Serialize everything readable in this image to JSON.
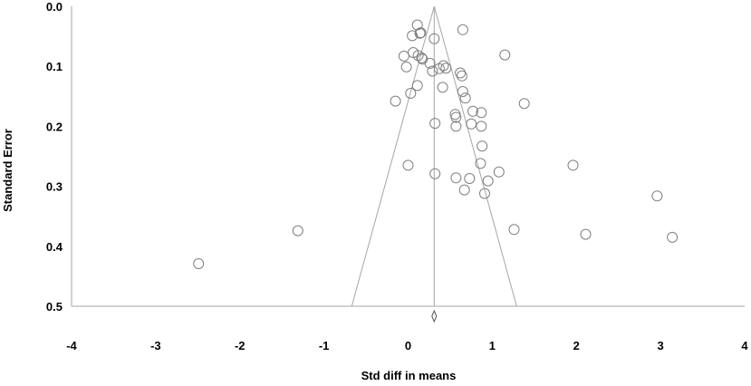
{
  "chart_data": {
    "type": "scatter",
    "title": "",
    "xlabel": "Std diff in means",
    "ylabel": "Standard Error",
    "xlim": [
      -4,
      4
    ],
    "ylim": [
      0,
      0.5
    ],
    "y_reversed": true,
    "grid": false,
    "x_ticks": [
      "-4",
      "-3",
      "-2",
      "-1",
      "0",
      "1",
      "2",
      "3",
      "4"
    ],
    "y_ticks": [
      "0.0",
      "0.1",
      "0.2",
      "0.3",
      "0.4",
      "0.5"
    ],
    "summary_effect": 0.31,
    "funnel_lower_at_max_se": -0.67,
    "funnel_upper_at_max_se": 1.29,
    "marker": "open-circle",
    "marker_color": "#808080",
    "line_color": "#a6a6a6",
    "points": [
      {
        "x": 0.11,
        "y": 0.031
      },
      {
        "x": 0.15,
        "y": 0.044
      },
      {
        "x": 0.14,
        "y": 0.045
      },
      {
        "x": 0.05,
        "y": 0.049
      },
      {
        "x": 0.31,
        "y": 0.054
      },
      {
        "x": 0.65,
        "y": 0.039
      },
      {
        "x": 1.15,
        "y": 0.081
      },
      {
        "x": -0.05,
        "y": 0.083
      },
      {
        "x": 0.06,
        "y": 0.077
      },
      {
        "x": 0.12,
        "y": 0.082
      },
      {
        "x": 0.16,
        "y": 0.086
      },
      {
        "x": 0.17,
        "y": 0.088
      },
      {
        "x": -0.02,
        "y": 0.101
      },
      {
        "x": 0.26,
        "y": 0.095
      },
      {
        "x": 0.29,
        "y": 0.108
      },
      {
        "x": 0.37,
        "y": 0.104
      },
      {
        "x": 0.42,
        "y": 0.099
      },
      {
        "x": 0.45,
        "y": 0.103
      },
      {
        "x": 0.62,
        "y": 0.111
      },
      {
        "x": 0.64,
        "y": 0.116
      },
      {
        "x": 0.11,
        "y": 0.132
      },
      {
        "x": 0.41,
        "y": 0.135
      },
      {
        "x": 0.65,
        "y": 0.142
      },
      {
        "x": 0.68,
        "y": 0.153
      },
      {
        "x": 0.03,
        "y": 0.145
      },
      {
        "x": -0.15,
        "y": 0.158
      },
      {
        "x": 1.38,
        "y": 0.162
      },
      {
        "x": 0.77,
        "y": 0.175
      },
      {
        "x": 0.87,
        "y": 0.177
      },
      {
        "x": 0.56,
        "y": 0.18
      },
      {
        "x": 0.57,
        "y": 0.185
      },
      {
        "x": 0.32,
        "y": 0.195
      },
      {
        "x": 0.57,
        "y": 0.2
      },
      {
        "x": 0.75,
        "y": 0.196
      },
      {
        "x": 0.87,
        "y": 0.2
      },
      {
        "x": 0.88,
        "y": 0.233
      },
      {
        "x": 0.86,
        "y": 0.262
      },
      {
        "x": 0.0,
        "y": 0.265
      },
      {
        "x": 1.08,
        "y": 0.276
      },
      {
        "x": 0.32,
        "y": 0.279
      },
      {
        "x": 0.57,
        "y": 0.286
      },
      {
        "x": 0.73,
        "y": 0.287
      },
      {
        "x": 0.95,
        "y": 0.291
      },
      {
        "x": 0.67,
        "y": 0.306
      },
      {
        "x": 0.91,
        "y": 0.312
      },
      {
        "x": 1.96,
        "y": 0.265
      },
      {
        "x": 2.96,
        "y": 0.316
      },
      {
        "x": 1.26,
        "y": 0.372
      },
      {
        "x": 2.11,
        "y": 0.38
      },
      {
        "x": 3.14,
        "y": 0.385
      },
      {
        "x": -1.31,
        "y": 0.374
      },
      {
        "x": -2.49,
        "y": 0.429
      }
    ]
  }
}
